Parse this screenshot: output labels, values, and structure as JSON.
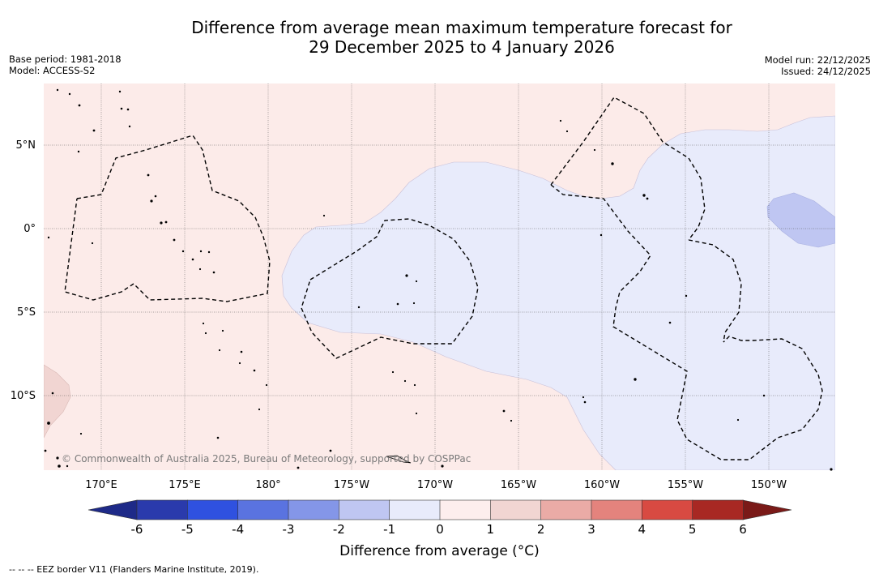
{
  "title": {
    "line1": "Difference from average mean maximum temperature forecast for",
    "line2": "29 December 2025 to 4 January 2026"
  },
  "meta_left": {
    "base_period": "Base period: 1981-2018",
    "model": "Model: ACCESS-S2"
  },
  "meta_right": {
    "model_run": "Model run: 22/12/2025",
    "issued": "Issued: 24/12/2025"
  },
  "map": {
    "lat_labels": [
      "5°N",
      "0°",
      "5°S",
      "10°S"
    ],
    "lon_labels": [
      "170°E",
      "175°E",
      "180°",
      "175°W",
      "170°W",
      "165°W",
      "160°W",
      "155°W",
      "150°W"
    ],
    "copyright": "© Commonwealth of Australia 2025, Bureau of Meteorology, supported by COSPPac",
    "colors": {
      "warm_0_1": "#fcebe9",
      "cool_m1_0": "#e8ebfb",
      "cool_m2_m1": "#bfc6f2",
      "warm_1_2": "#f1d5d2",
      "eez_line": "#000000"
    }
  },
  "colorbar": {
    "ticks": [
      "-6",
      "-5",
      "-4",
      "-3",
      "-2",
      "-1",
      "0",
      "1",
      "2",
      "3",
      "4",
      "5",
      "6"
    ],
    "colors": [
      "#2a3aac",
      "#2f51e0",
      "#5a73e0",
      "#8496e8",
      "#bfc6f2",
      "#e8ebfb",
      "#fdeeed",
      "#f1d5d2",
      "#eaaba6",
      "#e4837d",
      "#d84a42",
      "#a82823"
    ],
    "under_color": "#1e2a88",
    "over_color": "#7a1a18",
    "label": "Difference from average (°C)"
  },
  "footer": "--  --  -- EEZ border V11 (Flanders Marine Institute, 2019)."
}
